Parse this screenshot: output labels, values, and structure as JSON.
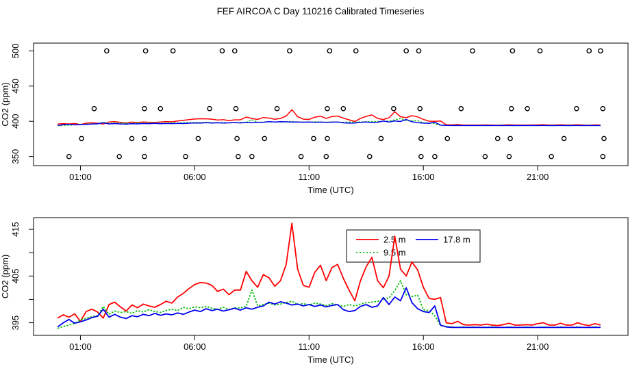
{
  "figure": {
    "background": "#ffffff",
    "foreground": "#000000"
  },
  "chart_data": {
    "type": "line",
    "title": "FEF AIRCOA C  Day 110216  Calibrated Timeseries",
    "x_unit": "hours (UTC)",
    "x_start": 0,
    "x_step": 0.25,
    "series": [
      {
        "name": "2.5 m",
        "color": "#ff0000",
        "line_style": "solid",
        "values": [
          396.0,
          396.7,
          396.2,
          396.9,
          395.3,
          397.4,
          397.9,
          397.3,
          396.0,
          398.9,
          399.4,
          398.4,
          397.5,
          398.8,
          398.2,
          399.0,
          398.6,
          398.3,
          398.9,
          399.6,
          399.2,
          400.5,
          401.3,
          402.3,
          403.2,
          403.6,
          403.5,
          403.0,
          401.7,
          402.2,
          401.0,
          402.0,
          402.0,
          406.0,
          404.0,
          402.6,
          405.3,
          404.6,
          402.8,
          404.0,
          407.5,
          416.3,
          406.5,
          403.0,
          402.6,
          405.8,
          407.3,
          404.0,
          406.8,
          407.5,
          404.5,
          402.0,
          399.7,
          404.0,
          407.0,
          409.0,
          404.0,
          402.5,
          405.0,
          413.5,
          406.5,
          405.0,
          408.0,
          406.3,
          402.6,
          400.2,
          400.0,
          400.4,
          395.0,
          394.8,
          395.3,
          394.6,
          394.5,
          394.6,
          394.5,
          394.7,
          394.5,
          394.4,
          394.6,
          394.9,
          394.5,
          394.5,
          394.6,
          394.5,
          394.8,
          395.0,
          394.5,
          394.5,
          394.9,
          394.5,
          394.5,
          395.0,
          394.6,
          394.4,
          394.8,
          394.5
        ]
      },
      {
        "name": "9.5 m",
        "color": "#00bb00",
        "line_style": "dotted",
        "values": [
          393.8,
          394.2,
          394.5,
          394.9,
          395.6,
          395.9,
          396.3,
          396.5,
          398.5,
          396.8,
          397.5,
          397.2,
          397.4,
          397.0,
          397.6,
          397.3,
          397.8,
          397.4,
          397.2,
          397.6,
          397.9,
          397.6,
          398.3,
          398.0,
          398.4,
          398.2,
          398.5,
          398.1,
          397.9,
          398.3,
          397.8,
          398.2,
          398.2,
          398.5,
          402.0,
          398.6,
          398.9,
          399.2,
          398.8,
          399.0,
          399.3,
          399.6,
          398.9,
          399.1,
          398.8,
          399.2,
          399.0,
          398.7,
          399.1,
          398.8,
          398.5,
          398.9,
          398.6,
          399.0,
          399.3,
          399.4,
          399.6,
          399.9,
          400.3,
          401.9,
          404.0,
          401.0,
          400.6,
          400.9,
          397.8,
          397.6,
          396.5,
          394.4,
          394.2,
          394.1,
          394.0,
          394.1,
          394.0,
          394.1,
          394.0,
          394.0,
          394.1,
          394.0,
          394.0,
          394.1,
          394.0,
          394.0,
          394.1,
          394.0,
          394.0,
          394.1,
          394.0,
          394.0,
          394.1,
          394.0,
          394.0,
          394.1,
          394.0,
          394.0,
          394.1,
          394.0
        ]
      },
      {
        "name": "17.8 m",
        "color": "#0000ee",
        "line_style": "solid",
        "values": [
          394.1,
          395.0,
          395.7,
          394.9,
          395.2,
          395.6,
          396.1,
          396.4,
          397.9,
          396.2,
          396.8,
          396.2,
          395.9,
          396.5,
          396.3,
          396.8,
          396.5,
          397.0,
          396.6,
          396.9,
          396.7,
          397.1,
          396.8,
          397.3,
          397.7,
          397.4,
          398.0,
          397.6,
          397.9,
          397.5,
          397.8,
          398.1,
          397.7,
          398.2,
          397.9,
          398.3,
          398.6,
          399.4,
          399.0,
          399.5,
          399.2,
          398.8,
          399.0,
          398.6,
          398.9,
          398.5,
          398.8,
          398.4,
          398.7,
          398.9,
          397.8,
          397.4,
          397.6,
          398.5,
          398.9,
          398.3,
          398.6,
          400.4,
          398.9,
          400.5,
          399.7,
          402.5,
          399.3,
          398.0,
          397.4,
          397.2,
          398.6,
          394.5,
          394.1,
          394.0,
          394.0,
          394.0,
          394.0,
          394.0,
          394.0,
          394.0,
          394.0,
          394.0,
          394.0,
          394.0,
          394.0,
          394.0,
          394.0,
          394.0,
          394.0,
          394.0,
          394.0,
          394.0,
          394.0,
          394.0,
          394.0,
          394.0,
          394.0,
          394.0,
          394.0,
          394.0
        ]
      }
    ],
    "panels": [
      {
        "name": "overview",
        "ylabel": "CO2 (ppm)",
        "xlabel": "Time (UTC)",
        "ylim": [
          337,
          511
        ],
        "xlim": [
          -1.05,
          24.95
        ],
        "grid": false,
        "yticks": [
          {
            "value": 350,
            "label": "350"
          },
          {
            "value": 400,
            "label": "400"
          },
          {
            "value": 450,
            "label": "450"
          },
          {
            "value": 500,
            "label": "500"
          }
        ],
        "xticks": [
          {
            "value": 1,
            "label": "01:00"
          },
          {
            "value": 6,
            "label": "06:00"
          },
          {
            "value": 11,
            "label": "11:00"
          },
          {
            "value": 16,
            "label": "16:00"
          },
          {
            "value": 21,
            "label": "21:00"
          }
        ],
        "calibration_circles": {
          "marker": "open-circle",
          "color": "#000000",
          "levels": [
            {
              "value": 500,
              "times": [
                2.15,
                3.85,
                5.05,
                7.2,
                7.75,
                10.15,
                11.9,
                13.05,
                15.25,
                15.8,
                18.15,
                19.9,
                21.1,
                23.25,
                23.75
              ]
            },
            {
              "value": 418,
              "times": [
                1.6,
                3.8,
                4.5,
                6.65,
                7.8,
                9.6,
                11.8,
                12.5,
                14.7,
                15.85,
                17.65,
                19.85,
                20.55,
                22.7,
                23.85
              ]
            },
            {
              "value": 375.5,
              "times": [
                1.05,
                3.25,
                3.8,
                6.15,
                7.85,
                9.05,
                11.2,
                11.8,
                14.15,
                15.9,
                17.05,
                19.25,
                19.8,
                22.15,
                23.9
              ]
            },
            {
              "value": 350,
              "times": [
                0.5,
                2.7,
                3.8,
                5.6,
                7.9,
                8.5,
                10.65,
                11.75,
                13.65,
                15.9,
                16.5,
                18.7,
                19.75,
                21.6,
                23.85
              ]
            }
          ]
        }
      },
      {
        "name": "detail",
        "ylabel": "CO2 (ppm)",
        "xlabel": "Time (UTC)",
        "ylim": [
          392.3,
          417.5
        ],
        "xlim": [
          -1.05,
          24.95
        ],
        "grid": false,
        "yticks": [
          {
            "value": 395,
            "label": "395"
          },
          {
            "value": 400,
            "label": ""
          },
          {
            "value": 405,
            "label": "405"
          },
          {
            "value": 410,
            "label": ""
          },
          {
            "value": 415,
            "label": "415"
          }
        ],
        "xticks": [
          {
            "value": 1,
            "label": "01:00"
          },
          {
            "value": 6,
            "label": "06:00"
          },
          {
            "value": 11,
            "label": "11:00"
          },
          {
            "value": 16,
            "label": "16:00"
          },
          {
            "value": 21,
            "label": "21:00"
          }
        ],
        "legend": {
          "position": "top-center",
          "entries": [
            "2.5 m",
            "9.5 m",
            "17.8 m"
          ]
        }
      }
    ]
  }
}
